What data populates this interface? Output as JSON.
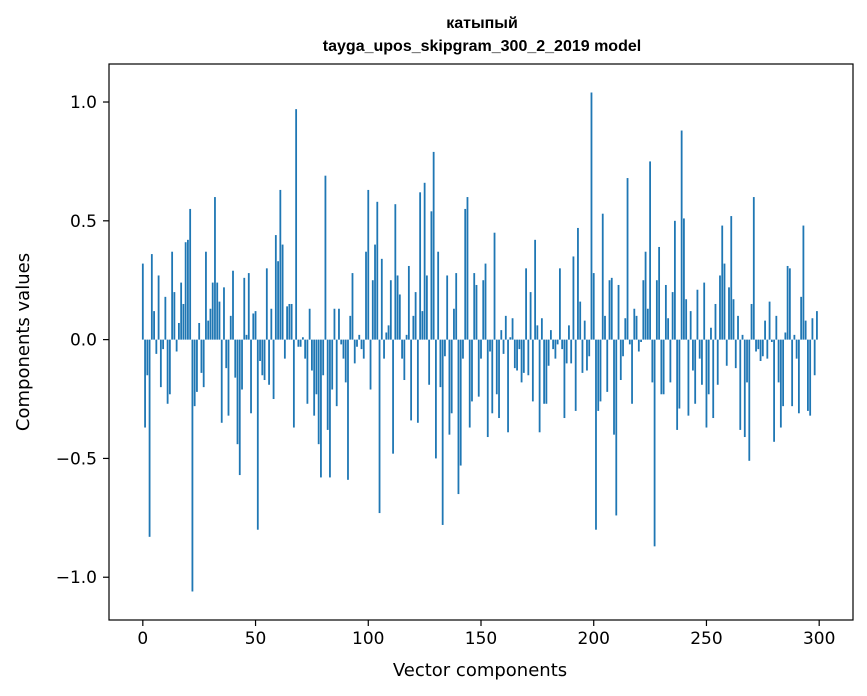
{
  "chart_data": {
    "type": "bar",
    "title": "катыпый",
    "subtitle": "tayga_upos_skipgram_300_2_2019 model",
    "xlabel": "Vector components",
    "ylabel": "Components values",
    "xlim": [
      -15,
      315
    ],
    "ylim": [
      -1.18,
      1.16
    ],
    "xticks": [
      0,
      50,
      100,
      150,
      200,
      250,
      300
    ],
    "yticks": [
      -1.0,
      -0.5,
      0.0,
      0.5,
      1.0
    ],
    "xtick_labels": [
      "0",
      "50",
      "100",
      "150",
      "200",
      "250",
      "300"
    ],
    "ytick_labels": [
      "−1.0",
      "−0.5",
      "0.0",
      "0.5",
      "1.0"
    ],
    "bar_color": "#1f77b4",
    "grid": false,
    "legend": "none",
    "values": [
      0.32,
      -0.37,
      -0.15,
      -0.83,
      0.36,
      0.12,
      -0.06,
      0.27,
      -0.2,
      -0.04,
      0.18,
      -0.27,
      -0.23,
      0.37,
      0.2,
      -0.05,
      0.07,
      0.24,
      0.15,
      0.41,
      0.42,
      0.55,
      -1.06,
      -0.28,
      -0.22,
      0.07,
      -0.14,
      -0.2,
      0.37,
      0.08,
      0.13,
      0.24,
      0.6,
      0.24,
      0.16,
      -0.35,
      0.22,
      -0.12,
      -0.32,
      0.1,
      0.29,
      -0.16,
      -0.44,
      -0.57,
      -0.21,
      0.26,
      0.02,
      0.28,
      -0.31,
      0.11,
      0.12,
      -0.8,
      -0.09,
      -0.15,
      -0.17,
      0.3,
      -0.19,
      0.13,
      -0.25,
      0.44,
      0.33,
      0.63,
      0.4,
      -0.08,
      0.14,
      0.15,
      0.15,
      -0.37,
      0.97,
      -0.03,
      -0.03,
      0.01,
      -0.08,
      -0.27,
      0.13,
      -0.13,
      -0.32,
      -0.23,
      -0.44,
      -0.58,
      -0.15,
      0.69,
      -0.38,
      -0.58,
      -0.21,
      0.13,
      -0.28,
      0.13,
      -0.02,
      -0.08,
      -0.18,
      -0.59,
      0.1,
      0.28,
      -0.1,
      -0.03,
      0.02,
      -0.04,
      -0.08,
      0.37,
      0.63,
      -0.21,
      0.25,
      0.4,
      0.58,
      -0.73,
      0.34,
      -0.08,
      0.03,
      0.06,
      0.25,
      -0.48,
      0.57,
      0.27,
      0.19,
      -0.08,
      -0.17,
      0.02,
      0.31,
      -0.34,
      0.1,
      0.2,
      -0.35,
      0.62,
      0.12,
      0.66,
      0.27,
      -0.19,
      0.54,
      0.79,
      -0.5,
      0.37,
      -0.2,
      -0.78,
      -0.07,
      0.27,
      -0.4,
      -0.31,
      0.13,
      0.28,
      -0.65,
      -0.53,
      -0.08,
      0.55,
      0.6,
      -0.37,
      -0.26,
      0.28,
      0.23,
      -0.24,
      -0.08,
      0.25,
      0.32,
      -0.41,
      -0.05,
      -0.31,
      0.45,
      -0.23,
      -0.33,
      0.04,
      -0.06,
      0.1,
      -0.39,
      0.01,
      0.09,
      -0.12,
      -0.13,
      -0.04,
      -0.18,
      -0.14,
      0.3,
      -0.15,
      0.2,
      -0.26,
      0.42,
      0.06,
      -0.39,
      0.09,
      -0.27,
      -0.27,
      -0.11,
      0.04,
      -0.04,
      -0.08,
      -0.02,
      0.3,
      -0.04,
      -0.33,
      -0.1,
      0.06,
      -0.1,
      0.35,
      -0.3,
      0.47,
      0.16,
      -0.14,
      0.08,
      -0.13,
      -0.07,
      1.04,
      0.28,
      -0.8,
      -0.3,
      -0.26,
      0.53,
      0.1,
      -0.22,
      0.25,
      0.26,
      -0.4,
      -0.74,
      0.23,
      -0.17,
      -0.07,
      0.09,
      0.68,
      -0.02,
      -0.27,
      0.13,
      0.1,
      -0.05,
      -0.01,
      0.25,
      0.37,
      0.13,
      0.75,
      -0.18,
      -0.87,
      0.25,
      0.39,
      -0.23,
      -0.23,
      0.23,
      0.09,
      -0.18,
      0.2,
      0.5,
      -0.38,
      -0.29,
      0.88,
      0.51,
      0.17,
      -0.32,
      0.12,
      -0.13,
      -0.27,
      0.21,
      -0.08,
      -0.19,
      0.24,
      -0.37,
      -0.23,
      0.05,
      -0.33,
      0.15,
      -0.19,
      0.27,
      0.48,
      0.32,
      -0.11,
      0.22,
      0.52,
      0.17,
      -0.12,
      0.1,
      -0.38,
      0.02,
      -0.41,
      -0.18,
      -0.51,
      0.15,
      0.6,
      -0.05,
      -0.04,
      -0.09,
      -0.07,
      0.08,
      -0.08,
      0.16,
      -0.01,
      -0.43,
      0.1,
      -0.18,
      -0.37,
      -0.28,
      0.03,
      0.31,
      0.3,
      -0.28,
      0.02,
      -0.08,
      -0.31,
      0.18,
      0.48,
      0.08,
      -0.3,
      -0.32,
      0.09,
      -0.15,
      0.12
    ]
  }
}
